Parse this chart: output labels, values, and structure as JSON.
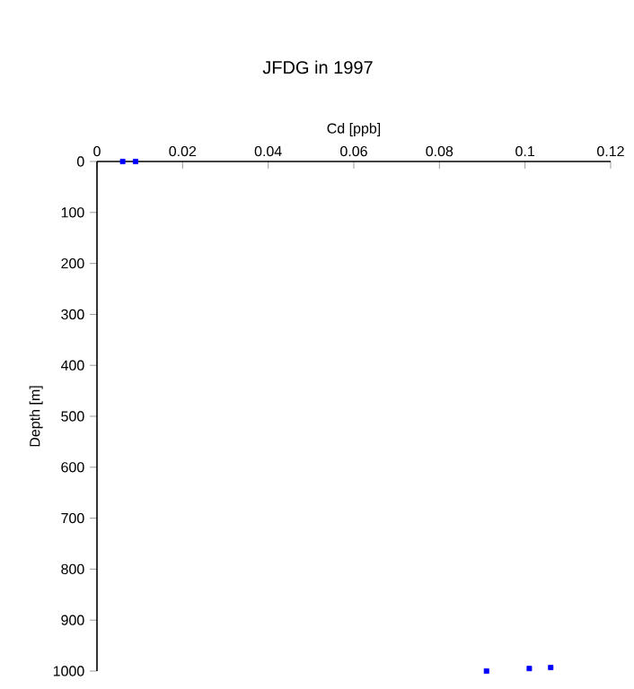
{
  "chart_data": {
    "type": "scatter",
    "title": "JFDG in 1997",
    "xlabel": "Cd [ppb]",
    "ylabel": "Depth [m]",
    "x": [
      0.006,
      0.009,
      0.091,
      0.101,
      0.106
    ],
    "series": [
      {
        "color": "#0000ff",
        "values": [
          0,
          0,
          1000,
          995,
          993
        ]
      }
    ],
    "xlim": [
      0,
      0.12
    ],
    "xticks": [
      0,
      0.02,
      0.04,
      0.06,
      0.08,
      0.1,
      0.12
    ],
    "ylim": [
      1000,
      0
    ],
    "yticks": [
      0,
      100,
      200,
      300,
      400,
      500,
      600,
      700,
      800,
      900,
      1000
    ],
    "marker": "square",
    "grid": false
  }
}
